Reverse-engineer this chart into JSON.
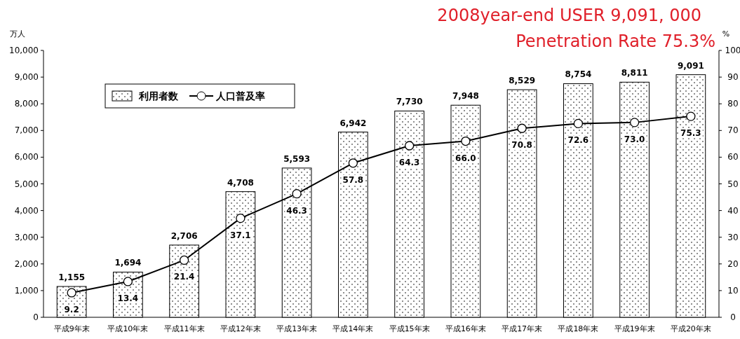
{
  "chart_data": {
    "type": "bar",
    "title": "2008year-end USER 9,091, 000",
    "subtitle": "Penetration Rate  75.3%",
    "ylabel": "万人",
    "y2label": "%",
    "categories": [
      "平成9年末",
      "平成10年末",
      "平成11年末",
      "平成12年末",
      "平成13年末",
      "平成14年末",
      "平成15年末",
      "平成16年末",
      "平成17年末",
      "平成18年末",
      "平成19年末",
      "平成20年末"
    ],
    "series": [
      {
        "name": "利用者数",
        "color": "#000000",
        "values": [
          1155,
          1694,
          2706,
          4708,
          5593,
          6942,
          7730,
          7948,
          8529,
          8754,
          8811,
          9091
        ],
        "value_labels": [
          "1,155",
          "1,694",
          "2,706",
          "4,708",
          "5,593",
          "6,942",
          "7,730",
          "7,948",
          "8,529",
          "8,754",
          "8,811",
          "9,091"
        ]
      },
      {
        "name": "人口普及率",
        "type": "line",
        "axis": "y2",
        "color": "#000000",
        "marker": "circle",
        "values": [
          9.2,
          13.4,
          21.4,
          37.1,
          46.3,
          57.8,
          64.3,
          66.0,
          70.8,
          72.6,
          73.0,
          75.3
        ],
        "value_labels": [
          "9.2",
          "13.4",
          "21.4",
          "37.1",
          "46.3",
          "57.8",
          "64.3",
          "66.0",
          "70.8",
          "72.6",
          "73.0",
          "75.3"
        ]
      }
    ],
    "ylim": [
      0,
      10000
    ],
    "yticks": [
      0,
      {
        "value": 1000,
        "label": "1,000"
      },
      {
        "value": 2000,
        "label": "2,000"
      },
      {
        "value": 3000,
        "label": "3,000"
      },
      {
        "value": 4000,
        "label": "4,000"
      },
      {
        "value": 5000,
        "label": "5,000"
      },
      {
        "value": 6000,
        "label": "6,000"
      },
      {
        "value": 7000,
        "label": "7,000"
      },
      {
        "value": 8000,
        "label": "8,000"
      },
      {
        "value": 9000,
        "label": "9,000"
      },
      {
        "value": 10000,
        "label": "10,000"
      }
    ],
    "y2lim": [
      0,
      100
    ],
    "y2ticks": [
      0,
      10,
      20,
      30,
      40,
      50,
      60,
      70,
      80,
      90,
      100
    ],
    "legend": "top left",
    "grid": false
  }
}
